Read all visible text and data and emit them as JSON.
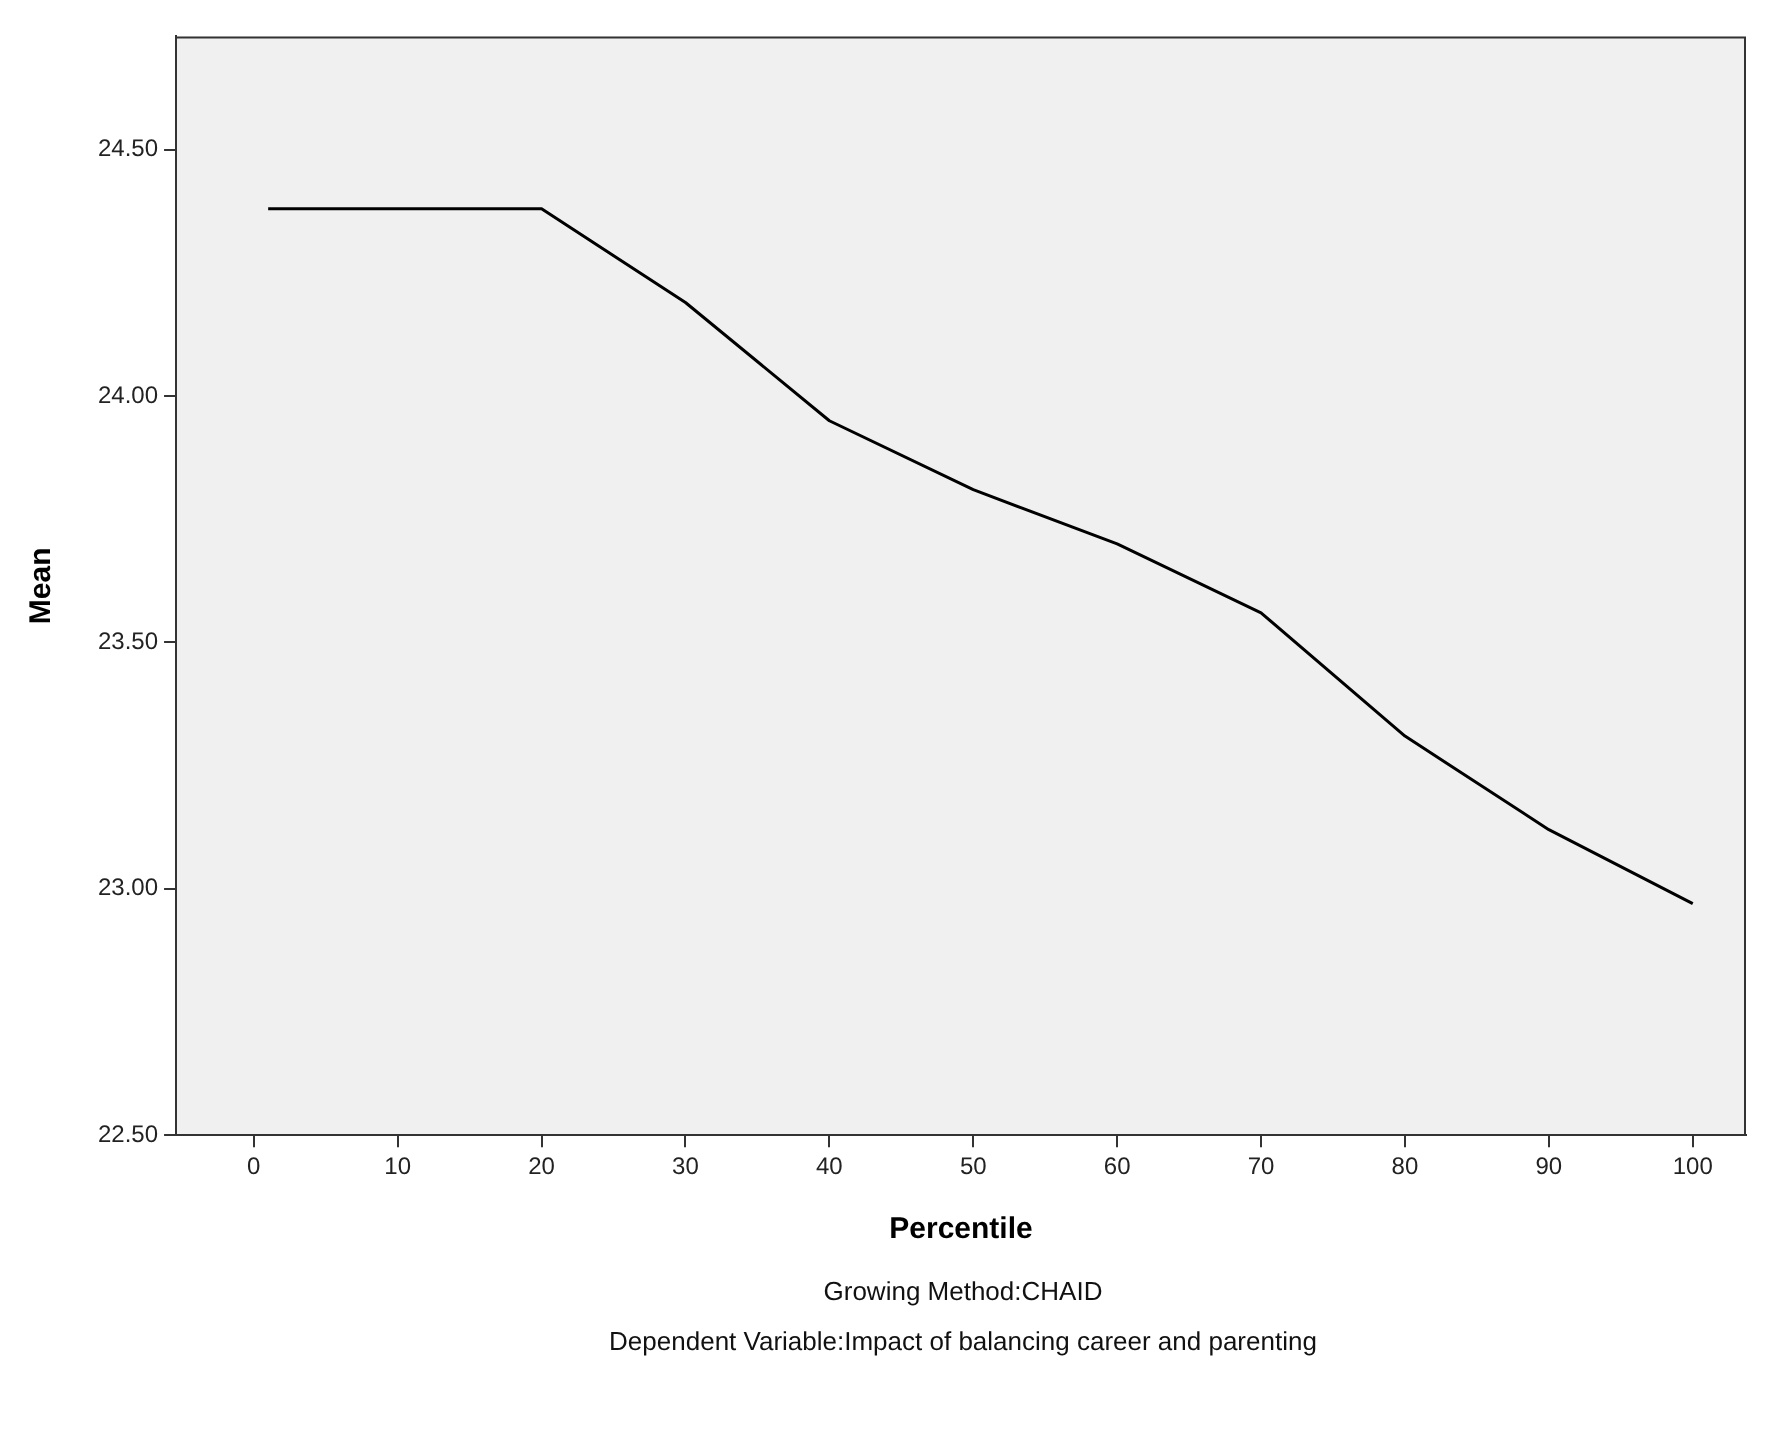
{
  "chart_data": {
    "type": "line",
    "xlabel": "Percentile",
    "ylabel": "Mean",
    "x": [
      1,
      20,
      30,
      40,
      50,
      60,
      70,
      80,
      90,
      100
    ],
    "series": [
      {
        "color": "#000000",
        "values": [
          24.38,
          24.38,
          24.19,
          23.95,
          23.81,
          23.7,
          23.56,
          23.31,
          23.12,
          22.97
        ]
      }
    ],
    "xlim": [
      -5.4,
      103.7
    ],
    "ylim": [
      22.5,
      24.73
    ],
    "xticks": [
      0,
      10,
      20,
      30,
      40,
      50,
      60,
      70,
      80,
      90,
      100
    ],
    "yticks": [
      {
        "value": 22.5,
        "label": "22.50"
      },
      {
        "value": 23,
        "label": "23.00"
      },
      {
        "value": 23.5,
        "label": "23.50"
      },
      {
        "value": 24,
        "label": "24.00"
      },
      {
        "value": 24.5,
        "label": "24.50"
      }
    ],
    "grid": false,
    "legend": false,
    "marker": "none",
    "line_style": "solid",
    "annotations": [
      "Growing Method:CHAID",
      "Dependent Variable:Impact of balancing career and parenting"
    ]
  }
}
